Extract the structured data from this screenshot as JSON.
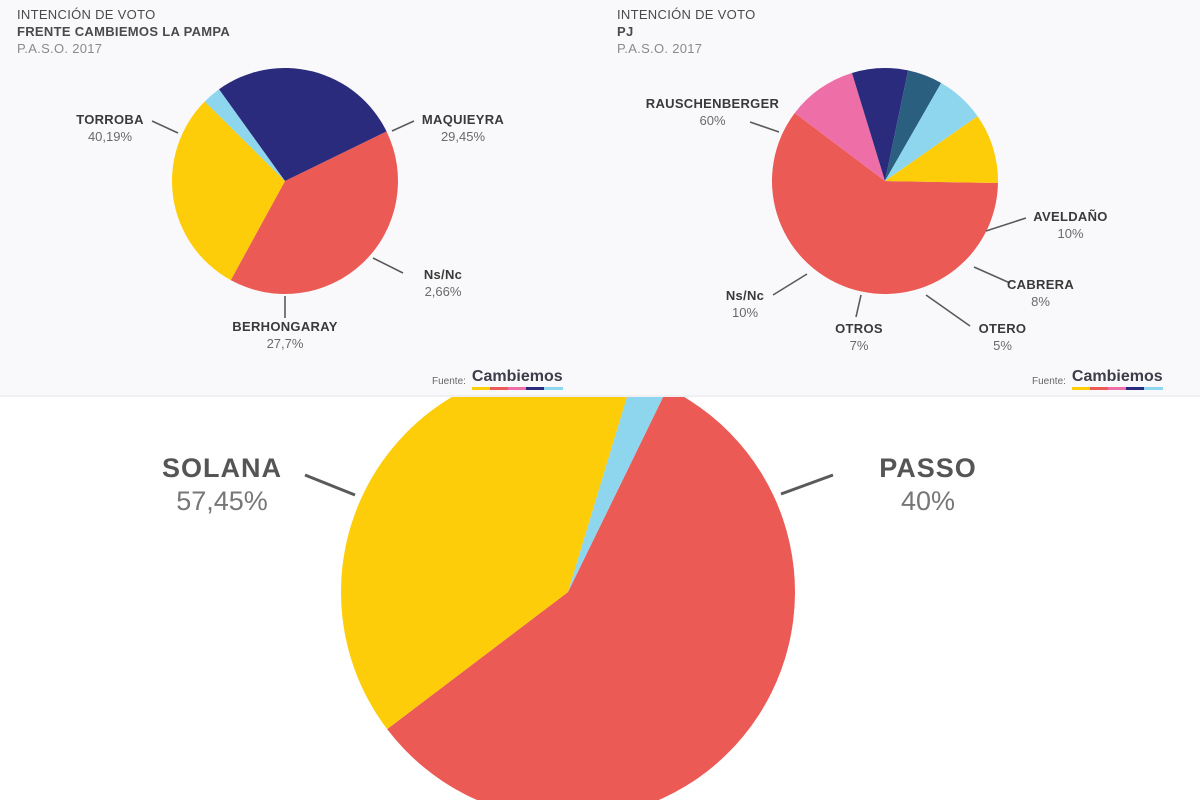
{
  "colors": {
    "red": "#ec5a55",
    "yellow": "#fecd0a",
    "navy": "#2b2b7d",
    "lightblue": "#8dd6ed",
    "pink": "#ee6ea8",
    "teal": "#2b5f7f",
    "leader": "#5a5a5a"
  },
  "source": {
    "fuente": "Fuente:",
    "brand": "Cambiemos"
  },
  "chart_data": [
    {
      "type": "pie",
      "title_lines": [
        "INTENCIÓN DE VOTO",
        "FRENTE CAMBIEMOS LA PAMPA",
        "P.A.S.O. 2017"
      ],
      "slices": [
        {
          "label": "TORROBA",
          "value_text": "40,19%",
          "value": 40.19,
          "color": "red"
        },
        {
          "label": "MAQUIEYRA",
          "value_text": "29,45%",
          "value": 29.45,
          "color": "yellow"
        },
        {
          "label": "Ns/Nc",
          "value_text": "2,66%",
          "value": 2.66,
          "color": "lightblue"
        },
        {
          "label": "BERHONGARAY",
          "value_text": "27,7%",
          "value": 27.7,
          "color": "navy"
        }
      ]
    },
    {
      "type": "pie",
      "title_lines": [
        "INTENCIÓN DE VOTO",
        "PJ",
        "P.A.S.O. 2017"
      ],
      "slices": [
        {
          "label": "RAUSCHENBERGER",
          "value_text": "60%",
          "value": 60,
          "color": "red"
        },
        {
          "label": "AVELDAÑO",
          "value_text": "10%",
          "value": 10,
          "color": "pink"
        },
        {
          "label": "CABRERA",
          "value_text": "8%",
          "value": 8,
          "color": "navy"
        },
        {
          "label": "OTERO",
          "value_text": "5%",
          "value": 5,
          "color": "teal"
        },
        {
          "label": "OTROS",
          "value_text": "7%",
          "value": 7,
          "color": "lightblue"
        },
        {
          "label": "Ns/Nc",
          "value_text": "10%",
          "value": 10,
          "color": "yellow"
        }
      ]
    },
    {
      "type": "pie",
      "title_lines": [],
      "slices": [
        {
          "label": "SOLANA",
          "value_text": "57,45%",
          "value": 57.45,
          "color": "red"
        },
        {
          "label": "PASSO",
          "value_text": "40%",
          "value": 40,
          "color": "yellow"
        },
        {
          "value": 2.55,
          "color": "lightblue"
        }
      ]
    }
  ]
}
